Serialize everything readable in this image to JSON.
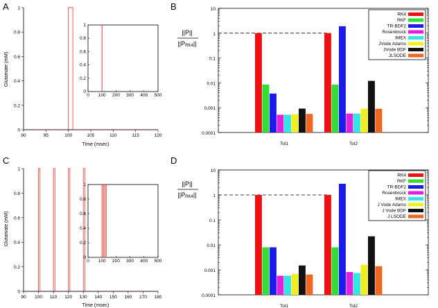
{
  "chart_data": [
    {
      "panel_letter": "A",
      "type": "line",
      "ylabel": "Glutamate (mM)",
      "xlabel": "Time (msec)",
      "xlim": [
        90,
        120
      ],
      "ylim": [
        0,
        1
      ],
      "xticks": [
        "90",
        "95",
        "100",
        "105",
        "110",
        "115",
        "120"
      ],
      "yticks": [
        "0",
        "0.2",
        "0.4",
        "0.6",
        "0.8",
        "1"
      ],
      "series": [
        {
          "x": [
            90,
            100,
            100,
            101,
            101,
            120
          ],
          "y": [
            0,
            0,
            1,
            1,
            0,
            0
          ],
          "color": "#e84a4a"
        }
      ],
      "inset": {
        "xlim": [
          0,
          500
        ],
        "ylim": [
          0,
          1
        ],
        "xticks": [
          "0",
          "100",
          "200",
          "300",
          "400",
          "500"
        ],
        "yticks": [
          "0",
          "0.2",
          "0.4",
          "0.6",
          "0.8",
          "1"
        ],
        "pulses": [
          100
        ]
      }
    },
    {
      "panel_letter": "B",
      "type": "bar",
      "ylabel": "||P||",
      "ylabel_denominator": "||P",
      "ylabel_denominator_sub": "RK4",
      "ylabel_denominator_end": "||",
      "scale": "log",
      "ylim": [
        0.0001,
        10
      ],
      "yticks": [
        "0.0001",
        "0.001",
        "0.01",
        "0.1",
        "1",
        "10"
      ],
      "categories": [
        "Tol1",
        "Tol2"
      ],
      "series": [
        {
          "name": "RK4",
          "color": "#ee1111",
          "values": [
            1,
            1
          ]
        },
        {
          "name": "RKF",
          "color": "#33dd33",
          "values": [
            0.0085,
            0.0085
          ]
        },
        {
          "name": "TR-BDF2",
          "color": "#1a1aee",
          "values": [
            0.0037,
            1.9
          ]
        },
        {
          "name": "Rosenbrock",
          "color": "#dd22dd",
          "values": [
            0.00052,
            0.00058
          ]
        },
        {
          "name": "IMEX",
          "color": "#33e6e6",
          "values": [
            0.00052,
            0.00058
          ]
        },
        {
          "name": "JVode Adams",
          "color": "#f0f020",
          "values": [
            0.00055,
            0.00092
          ]
        },
        {
          "name": "JVode BDF",
          "color": "#111111",
          "values": [
            0.00092,
            0.012
          ]
        },
        {
          "name": "JLSODE",
          "color": "#ee6622",
          "values": [
            0.00056,
            0.0009
          ]
        }
      ]
    },
    {
      "panel_letter": "C",
      "type": "line",
      "ylabel": "Glutamate (mM)",
      "xlabel": "Time (msec)",
      "xlim": [
        90,
        180
      ],
      "ylim": [
        0,
        1
      ],
      "xticks": [
        "90",
        "100",
        "110",
        "120",
        "130",
        "140",
        "150",
        "160",
        "170",
        "180"
      ],
      "yticks": [
        "0",
        "0.2",
        "0.4",
        "0.6",
        "0.8",
        "1"
      ],
      "series": [
        {
          "pulses_start": [
            100,
            110,
            120,
            130
          ],
          "pulse_width": 1,
          "color": "#e84a4a"
        }
      ],
      "inset": {
        "xlim": [
          0,
          500
        ],
        "ylim": [
          0,
          1
        ],
        "xticks": [
          "0",
          "100",
          "200",
          "300",
          "400",
          "500"
        ],
        "yticks": [
          "0",
          "0.2",
          "0.4",
          "0.6",
          "0.8",
          "1"
        ],
        "pulses": [
          100,
          110,
          120,
          130
        ]
      }
    },
    {
      "panel_letter": "D",
      "type": "bar",
      "ylabel": "||P||",
      "ylabel_denominator": "||P",
      "ylabel_denominator_sub": "RK4",
      "ylabel_denominator_end": "||",
      "scale": "log",
      "ylim": [
        0.0001,
        10
      ],
      "yticks": [
        "0.0001",
        "0.001",
        "0.01",
        "0.1",
        "1",
        "10"
      ],
      "categories": [
        "Tol1",
        "Tol2"
      ],
      "series": [
        {
          "name": "RK4",
          "color": "#ee1111",
          "values": [
            1,
            1
          ]
        },
        {
          "name": "RKF",
          "color": "#33dd33",
          "values": [
            0.008,
            0.008
          ]
        },
        {
          "name": "TR-BDF2",
          "color": "#1a1aee",
          "values": [
            0.008,
            2.8
          ]
        },
        {
          "name": "Rosenbrock",
          "color": "#dd22dd",
          "values": [
            0.00058,
            0.00082
          ]
        },
        {
          "name": "IMEX",
          "color": "#33e6e6",
          "values": [
            0.00058,
            0.00075
          ]
        },
        {
          "name": "J Vode Adams",
          "color": "#f0f020",
          "values": [
            0.00068,
            0.0016
          ]
        },
        {
          "name": "J Vode BDF",
          "color": "#111111",
          "values": [
            0.0015,
            0.022
          ]
        },
        {
          "name": "J LSODE",
          "color": "#ee6622",
          "values": [
            0.00065,
            0.0014
          ]
        }
      ]
    }
  ]
}
